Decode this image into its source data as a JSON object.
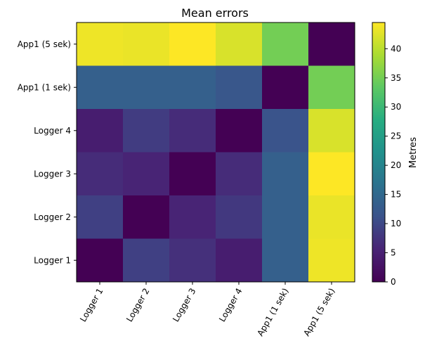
{
  "chart_data": {
    "type": "heatmap",
    "title": "Mean errors",
    "x_categories": [
      "Logger 1",
      "Logger 2",
      "Logger 3",
      "Logger 4",
      "App1 (1 sek)",
      "App1 (5 sek)"
    ],
    "y_categories_top_to_bottom": [
      "App1 (5 sek)",
      "App1 (1 sek)",
      "Logger 4",
      "Logger 3",
      "Logger 2",
      "Logger 1"
    ],
    "values_top_to_bottom": [
      [
        43.5,
        43.2,
        44.5,
        42.0,
        35.0,
        0.0
      ],
      [
        13.5,
        13.5,
        13.5,
        12.0,
        0.0,
        35.0
      ],
      [
        4.5,
        8.5,
        6.5,
        0.0,
        11.5,
        42.0
      ],
      [
        6.5,
        5.5,
        0.0,
        6.5,
        13.5,
        44.5
      ],
      [
        9.0,
        0.0,
        5.5,
        8.0,
        13.5,
        43.2
      ],
      [
        0.0,
        9.0,
        7.0,
        4.5,
        13.5,
        43.5
      ]
    ],
    "colorbar": {
      "label": "Metres",
      "range": [
        0,
        44.5
      ],
      "ticks": [
        0,
        5,
        10,
        15,
        20,
        25,
        30,
        35,
        40
      ],
      "colormap": "viridis"
    }
  }
}
